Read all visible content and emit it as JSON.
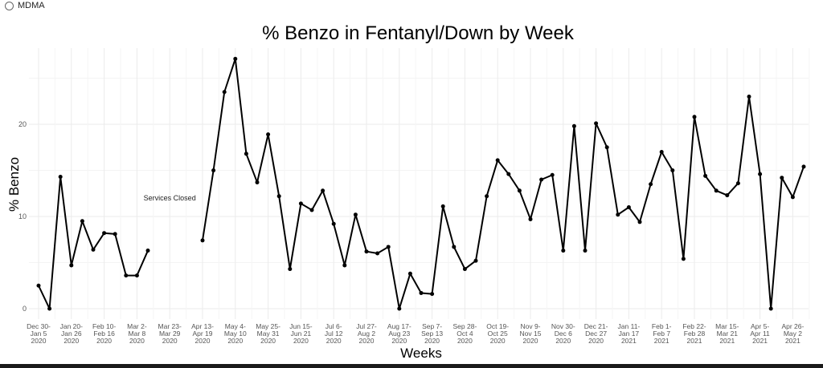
{
  "filter": {
    "radio_label": "MDMA"
  },
  "chart_data": {
    "type": "line",
    "title": "% Benzo in Fentanyl/Down by Week",
    "xlabel": "Weeks",
    "ylabel": "% Benzo",
    "ylim": [
      -1.3,
      28.4
    ],
    "yticks": [
      0,
      10,
      20
    ],
    "grid": true,
    "legend": "none",
    "line_color": "#000000",
    "annotation": {
      "text": "Services Closed",
      "week_index": 12,
      "y": 12
    },
    "xtick_labels": [
      [
        "Dec 30-",
        "Jan 5",
        "2020"
      ],
      [
        "Jan 20-",
        "Jan 26",
        "2020"
      ],
      [
        "Feb 10-",
        "Feb 16",
        "2020"
      ],
      [
        "Mar 2-",
        "Mar 8",
        "2020"
      ],
      [
        "Mar 23-",
        "Mar 29",
        "2020"
      ],
      [
        "Apr 13-",
        "Apr 19",
        "2020"
      ],
      [
        "May 4-",
        "May 10",
        "2020"
      ],
      [
        "May 25-",
        "May 31",
        "2020"
      ],
      [
        "Jun 15-",
        "Jun 21",
        "2020"
      ],
      [
        "Jul 6-",
        "Jul 12",
        "2020"
      ],
      [
        "Jul 27-",
        "Aug 2",
        "2020"
      ],
      [
        "Aug 17-",
        "Aug 23",
        "2020"
      ],
      [
        "Sep 7-",
        "Sep 13",
        "2020"
      ],
      [
        "Sep 28-",
        "Oct 4",
        "2020"
      ],
      [
        "Oct 19-",
        "Oct 25",
        "2020"
      ],
      [
        "Nov 9-",
        "Nov 15",
        "2020"
      ],
      [
        "Nov 30-",
        "Dec 6",
        "2020"
      ],
      [
        "Dec 21-",
        "Dec 27",
        "2020"
      ],
      [
        "Jan 11-",
        "Jan 17",
        "2021"
      ],
      [
        "Feb 1-",
        "Feb 7",
        "2021"
      ],
      [
        "Feb 22-",
        "Feb 28",
        "2021"
      ],
      [
        "Mar 15-",
        "Mar 21",
        "2021"
      ],
      [
        "Apr 5-",
        "Apr 11",
        "2021"
      ],
      [
        "Apr 26-",
        "May 2",
        "2021"
      ]
    ],
    "values": [
      2.5,
      0,
      14.3,
      4.7,
      9.5,
      6.4,
      8.2,
      8.1,
      3.6,
      3.6,
      6.3,
      null,
      null,
      null,
      null,
      7.4,
      15.0,
      23.5,
      27.1,
      16.8,
      13.7,
      18.9,
      12.2,
      4.3,
      11.4,
      10.7,
      12.8,
      9.2,
      4.7,
      10.2,
      6.2,
      6.0,
      6.7,
      0,
      3.8,
      1.7,
      1.6,
      11.1,
      6.7,
      4.3,
      5.2,
      12.2,
      16.1,
      14.6,
      12.8,
      9.7,
      14.0,
      14.5,
      6.3,
      19.8,
      6.3,
      20.1,
      17.5,
      10.2,
      11.0,
      9.4,
      13.5,
      17.0,
      15.0,
      5.4,
      20.8,
      14.4,
      12.8,
      12.3,
      13.6,
      23.0,
      14.6,
      0,
      14.2,
      12.1,
      15.4
    ]
  }
}
